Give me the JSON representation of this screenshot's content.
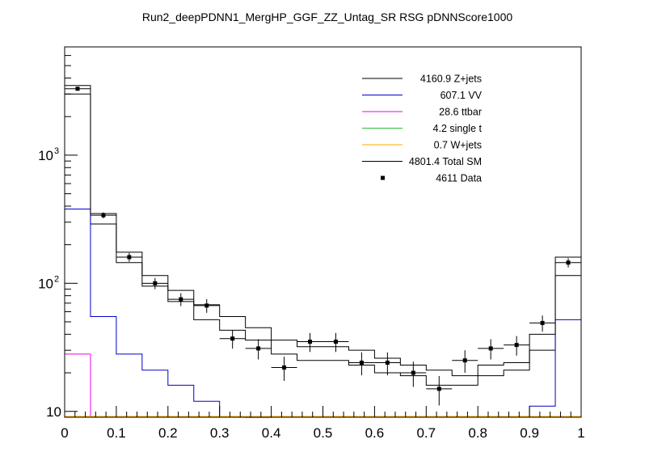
{
  "chart_data": {
    "type": "histogram",
    "title": "Run2_deepPDNN1_MergHP_GGF_ZZ_Untag_SR RSG  pDNNScore1000",
    "xlabel": "",
    "ylabel": "",
    "xlim": [
      0,
      1
    ],
    "ylim": [
      9,
      7000
    ],
    "yscale": "log",
    "grid": false,
    "legend_position": "top-right",
    "x_tick_labels": [
      "0",
      "0.1",
      "0.2",
      "0.3",
      "0.4",
      "0.5",
      "0.6",
      "0.7",
      "0.8",
      "0.9",
      "1"
    ],
    "y_tick_labels": [
      "10",
      "10",
      "10"
    ],
    "y_tick_exponents": [
      "",
      "2",
      "3"
    ],
    "y_tick_values": [
      10,
      100,
      1000
    ],
    "bin_edges": [
      0,
      0.05,
      0.1,
      0.15,
      0.2,
      0.25,
      0.3,
      0.35,
      0.4,
      0.45,
      0.5,
      0.55,
      0.6,
      0.65,
      0.7,
      0.75,
      0.8,
      0.85,
      0.9,
      0.95,
      1.0
    ],
    "series": [
      {
        "name": "Z+jets",
        "yield_label": "4160.9",
        "color": "#000000",
        "values": [
          3000,
          290,
          145,
          95,
          72,
          52,
          43,
          36,
          28,
          25,
          25,
          23,
          20,
          19,
          16,
          16,
          19,
          21,
          30,
          115
        ]
      },
      {
        "name": "VV",
        "yield_label": "607.1",
        "color": "#0000cc",
        "values": [
          380,
          55,
          28,
          21,
          16,
          12,
          9,
          8.5,
          0,
          0,
          0,
          0,
          0,
          0,
          0,
          0,
          0,
          0,
          11,
          52
        ]
      },
      {
        "name": "ttbar",
        "yield_label": "28.6",
        "color": "#ee00ee",
        "values": [
          28,
          0,
          0,
          0,
          0,
          0,
          0,
          0,
          0,
          0,
          0,
          0,
          0,
          0,
          0,
          0,
          0,
          0,
          0,
          0
        ]
      },
      {
        "name": "single t",
        "yield_label": "4.2",
        "color": "#33bb33",
        "values": [
          0,
          0,
          0,
          0,
          0,
          0,
          0,
          0,
          0,
          0,
          0,
          0,
          0,
          0,
          0,
          0,
          0,
          0,
          0,
          0
        ]
      },
      {
        "name": "W+jets",
        "yield_label": "0.7",
        "color": "#ffaa00",
        "values": [
          0,
          0,
          0,
          0,
          0,
          0,
          0,
          0,
          0,
          0,
          0,
          0,
          0,
          0,
          0,
          0,
          0,
          0,
          0,
          0
        ]
      },
      {
        "name": "Total SM",
        "yield_label": "4801.4",
        "color": "#000000",
        "values": [
          3500,
          350,
          175,
          115,
          88,
          68,
          55,
          45,
          36,
          32,
          32,
          30,
          26,
          23,
          21,
          19,
          23,
          24,
          40,
          160
        ]
      }
    ],
    "data": {
      "name": "Data",
      "yield_label": "4611",
      "x": [
        0.025,
        0.075,
        0.125,
        0.175,
        0.225,
        0.275,
        0.325,
        0.375,
        0.425,
        0.475,
        0.525,
        0.575,
        0.625,
        0.675,
        0.725,
        0.775,
        0.825,
        0.875,
        0.925,
        0.975
      ],
      "y": [
        3300,
        340,
        160,
        100,
        75,
        67,
        37,
        31,
        22,
        35,
        35,
        24,
        24,
        20,
        15,
        25,
        31,
        33,
        49,
        145
      ]
    }
  }
}
